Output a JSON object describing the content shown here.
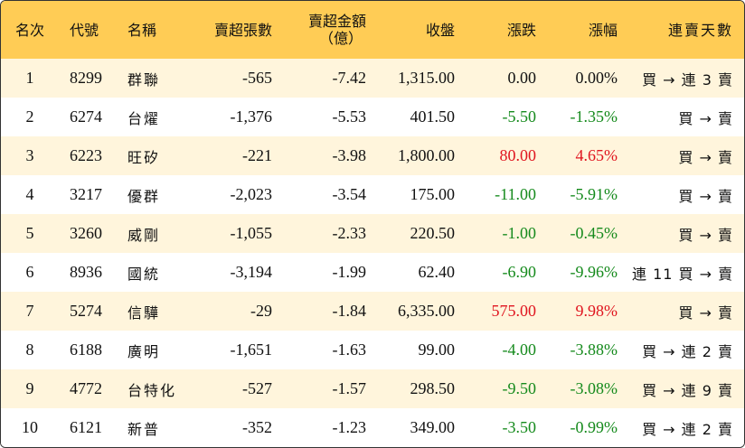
{
  "colors": {
    "header_bg": "#ffcc55",
    "row_alt_bg": "#fff5dc",
    "up": "#e0151f",
    "down": "#158a1c"
  },
  "headers": {
    "rank": "名次",
    "code": "代號",
    "name": "名稱",
    "sell_shares": "賣超張數",
    "sell_amount_line1": "賣超金額",
    "sell_amount_line2": "（億）",
    "close": "收盤",
    "change": "漲跌",
    "change_pct": "漲幅",
    "streak": "連賣天數"
  },
  "rows": [
    {
      "rank": "1",
      "code": "8299",
      "name": "群聯",
      "sell_shares": "-565",
      "sell_amount": "-7.42",
      "close": "1,315.00",
      "change": "0.00",
      "change_pct": "0.00%",
      "direction": "flat",
      "streak": "買 → 連 3 賣"
    },
    {
      "rank": "2",
      "code": "6274",
      "name": "台燿",
      "sell_shares": "-1,376",
      "sell_amount": "-5.53",
      "close": "401.50",
      "change": "-5.50",
      "change_pct": "-1.35%",
      "direction": "down",
      "streak": "買 → 賣"
    },
    {
      "rank": "3",
      "code": "6223",
      "name": "旺矽",
      "sell_shares": "-221",
      "sell_amount": "-3.98",
      "close": "1,800.00",
      "change": "80.00",
      "change_pct": "4.65%",
      "direction": "up",
      "streak": "買 → 賣"
    },
    {
      "rank": "4",
      "code": "3217",
      "name": "優群",
      "sell_shares": "-2,023",
      "sell_amount": "-3.54",
      "close": "175.00",
      "change": "-11.00",
      "change_pct": "-5.91%",
      "direction": "down",
      "streak": "買 → 賣"
    },
    {
      "rank": "5",
      "code": "3260",
      "name": "威剛",
      "sell_shares": "-1,055",
      "sell_amount": "-2.33",
      "close": "220.50",
      "change": "-1.00",
      "change_pct": "-0.45%",
      "direction": "down",
      "streak": "買 → 賣"
    },
    {
      "rank": "6",
      "code": "8936",
      "name": "國統",
      "sell_shares": "-3,194",
      "sell_amount": "-1.99",
      "close": "62.40",
      "change": "-6.90",
      "change_pct": "-9.96%",
      "direction": "down",
      "streak": "連 11 買 → 賣"
    },
    {
      "rank": "7",
      "code": "5274",
      "name": "信驊",
      "sell_shares": "-29",
      "sell_amount": "-1.84",
      "close": "6,335.00",
      "change": "575.00",
      "change_pct": "9.98%",
      "direction": "up",
      "streak": "買 → 賣"
    },
    {
      "rank": "8",
      "code": "6188",
      "name": "廣明",
      "sell_shares": "-1,651",
      "sell_amount": "-1.63",
      "close": "99.00",
      "change": "-4.00",
      "change_pct": "-3.88%",
      "direction": "down",
      "streak": "買 → 連 2 賣"
    },
    {
      "rank": "9",
      "code": "4772",
      "name": "台特化",
      "sell_shares": "-527",
      "sell_amount": "-1.57",
      "close": "298.50",
      "change": "-9.50",
      "change_pct": "-3.08%",
      "direction": "down",
      "streak": "買 → 連 9 賣"
    },
    {
      "rank": "10",
      "code": "6121",
      "name": "新普",
      "sell_shares": "-352",
      "sell_amount": "-1.23",
      "close": "349.00",
      "change": "-3.50",
      "change_pct": "-0.99%",
      "direction": "down",
      "streak": "買 → 連 2 賣"
    }
  ]
}
